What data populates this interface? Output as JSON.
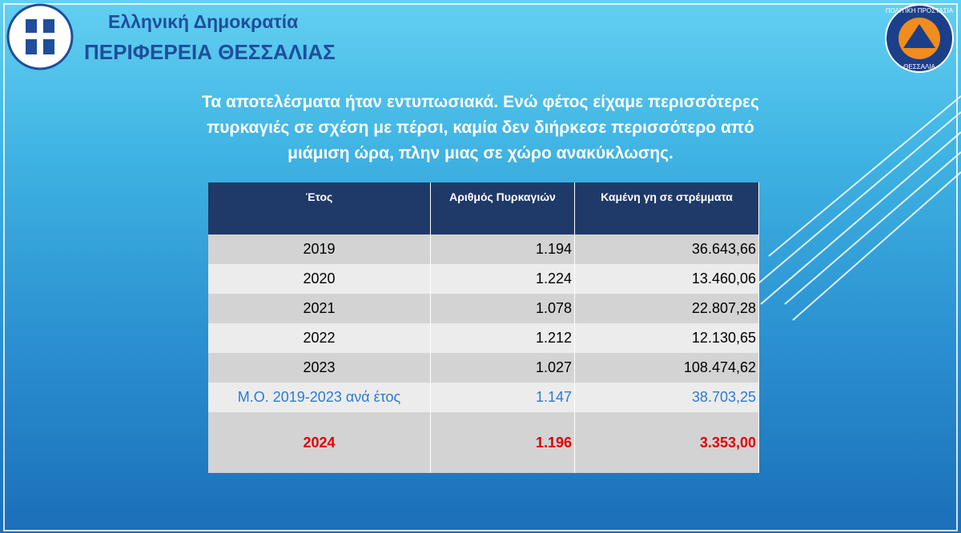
{
  "header": {
    "title": "Ελληνική Δημοκρατία",
    "subtitle": "ΠΕΡΙΦΕΡΕΙΑ ΘΕΣΣΑΛΙΑΣ"
  },
  "logo": {
    "top": "ΠΟΛΙΤΙΚΗ ΠΡΟΣΤΑΣΙΑ",
    "bottom": "ΘΕΣΣΑΛΙΑ"
  },
  "body": {
    "lines": [
      "Τα αποτελέσματα ήταν εντυπωσιακά. Ενώ φέτος είχαμε περισσότερες",
      "πυρκαγιές σε σχέση με πέρσι, καμία δεν διήρκεσε περισσότερο από",
      "μιάμιση ώρα, πλην μιας σε χώρο ανακύκλωσης."
    ]
  },
  "table": {
    "columns": [
      "Έτος",
      "Αριθμός Πυρκαγιών",
      "Καμένη γη σε στρέμματα"
    ],
    "rows": [
      [
        "2019",
        "1.194",
        "36.643,66"
      ],
      [
        "2020",
        "1.224",
        "13.460,06"
      ],
      [
        "2021",
        "1.078",
        "22.807,28"
      ],
      [
        "2022",
        "1.212",
        "12.130,65"
      ],
      [
        "2023",
        "1.027",
        "108.474,62"
      ],
      [
        "Μ.Ο. 2019-2023 ανά έτος",
        "1.147",
        "38.703,25"
      ],
      [
        "2024",
        "1.196",
        "3.353,00"
      ]
    ]
  }
}
